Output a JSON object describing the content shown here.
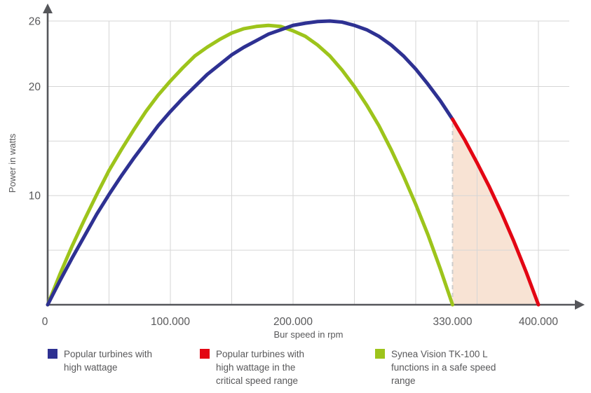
{
  "chart_data": {
    "type": "line",
    "title": "",
    "xlabel": "Bur speed in rpm",
    "ylabel": "Power in watts",
    "xlim": [
      0,
      400
    ],
    "ylim": [
      0,
      26
    ],
    "x_values_unit": "thousand rpm",
    "x_ticks": [
      {
        "value": 0,
        "label": "0"
      },
      {
        "value": 100,
        "label": "100.000"
      },
      {
        "value": 200,
        "label": "200.000"
      },
      {
        "value": 330,
        "label": "330.000"
      },
      {
        "value": 400,
        "label": "400.000"
      }
    ],
    "y_ticks": [
      {
        "value": 10,
        "label": "10"
      },
      {
        "value": 20,
        "label": "20"
      },
      {
        "value": 26,
        "label": "26"
      }
    ],
    "x_gridlines": [
      50,
      100,
      150,
      200,
      250,
      300,
      350,
      400
    ],
    "y_gridlines": [
      5,
      10,
      15,
      20,
      26
    ],
    "grid_on": true,
    "grid_color": "#d6d6d6",
    "axis_color": "#55565a",
    "text_color": "#58585a",
    "dashed_guide": {
      "x": 330,
      "color": "#cccccc"
    },
    "shaded_region": {
      "color": "#f8e3d4",
      "from_x": 330,
      "to_x": 400,
      "description": "area under red curve segment in the critical speed range 330.000-400.000 rpm"
    },
    "series": [
      {
        "role": "safe",
        "name": "Synea Vision TK-100 L functions in a safe speed range",
        "color": "#9dc41b",
        "points": [
          [
            0,
            0
          ],
          [
            10,
            2.8
          ],
          [
            20,
            5.4
          ],
          [
            30,
            7.8
          ],
          [
            40,
            10.1
          ],
          [
            50,
            12.3
          ],
          [
            60,
            14.2
          ],
          [
            70,
            16.0
          ],
          [
            80,
            17.7
          ],
          [
            90,
            19.2
          ],
          [
            100,
            20.5
          ],
          [
            110,
            21.7
          ],
          [
            120,
            22.8
          ],
          [
            130,
            23.6
          ],
          [
            140,
            24.3
          ],
          [
            150,
            24.9
          ],
          [
            160,
            25.3
          ],
          [
            170,
            25.5
          ],
          [
            180,
            25.6
          ],
          [
            190,
            25.5
          ],
          [
            200,
            25.1
          ],
          [
            210,
            24.6
          ],
          [
            220,
            23.8
          ],
          [
            230,
            22.8
          ],
          [
            240,
            21.5
          ],
          [
            250,
            20.0
          ],
          [
            260,
            18.3
          ],
          [
            270,
            16.4
          ],
          [
            280,
            14.2
          ],
          [
            290,
            11.8
          ],
          [
            300,
            9.2
          ],
          [
            310,
            6.4
          ],
          [
            320,
            3.3
          ],
          [
            330,
            0
          ]
        ]
      },
      {
        "role": "high-wattage",
        "name": "Popular turbines with high wattage",
        "color": "#2e3192",
        "points": [
          [
            0,
            0
          ],
          [
            10,
            2.2
          ],
          [
            20,
            4.3
          ],
          [
            30,
            6.3
          ],
          [
            40,
            8.3
          ],
          [
            50,
            10.1
          ],
          [
            60,
            11.8
          ],
          [
            70,
            13.4
          ],
          [
            80,
            14.9
          ],
          [
            90,
            16.4
          ],
          [
            100,
            17.7
          ],
          [
            110,
            18.9
          ],
          [
            120,
            20.0
          ],
          [
            130,
            21.1
          ],
          [
            140,
            22.0
          ],
          [
            150,
            22.9
          ],
          [
            160,
            23.6
          ],
          [
            170,
            24.2
          ],
          [
            180,
            24.8
          ],
          [
            190,
            25.2
          ],
          [
            200,
            25.6
          ],
          [
            210,
            25.8
          ],
          [
            220,
            25.95
          ],
          [
            230,
            26
          ],
          [
            240,
            25.9
          ],
          [
            250,
            25.6
          ],
          [
            260,
            25.2
          ],
          [
            270,
            24.6
          ],
          [
            280,
            23.8
          ],
          [
            290,
            22.8
          ],
          [
            300,
            21.6
          ],
          [
            310,
            20.2
          ],
          [
            320,
            18.7
          ],
          [
            330,
            17.0
          ]
        ]
      },
      {
        "role": "critical",
        "name": "Popular turbines with high wattage in the critical speed range",
        "color": "#e30613",
        "points": [
          [
            330,
            17.0
          ],
          [
            340,
            15.1
          ],
          [
            350,
            13.0
          ],
          [
            360,
            10.8
          ],
          [
            370,
            8.4
          ],
          [
            380,
            5.8
          ],
          [
            390,
            3.0
          ],
          [
            400,
            0
          ]
        ]
      }
    ],
    "legend": [
      {
        "color": "#2e3192",
        "label": "Popular turbines with high wattage"
      },
      {
        "color": "#e30613",
        "label": "Popular turbines with high wattage in the critical speed range"
      },
      {
        "color": "#9dc41b",
        "label": "Synea Vision TK-100 L functions in a safe speed range"
      }
    ],
    "legend_position": "bottom"
  }
}
